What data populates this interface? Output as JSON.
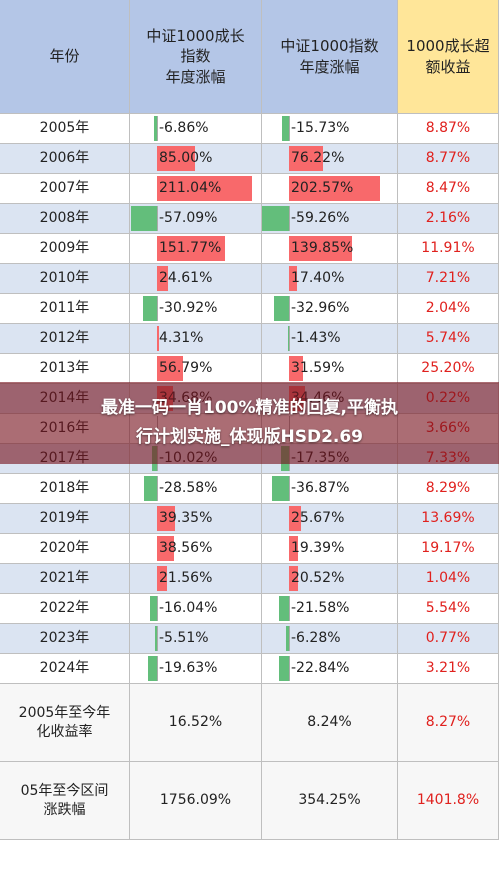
{
  "headers": {
    "year": "年份",
    "csi1000": "中证1000成长\n指数\n年度涨幅",
    "csi1000_index": "中证1000指数\n年度涨幅",
    "excess": "1000成长超\n额收益"
  },
  "rows": [
    {
      "year": "2005年",
      "a": "-6.86%",
      "a_num": -6.86,
      "b": "-15.73%",
      "b_num": -15.73,
      "c": "8.87%"
    },
    {
      "year": "2006年",
      "a": "85.00%",
      "a_num": 85.0,
      "b": "76.22%",
      "b_num": 76.22,
      "c": "8.77%"
    },
    {
      "year": "2007年",
      "a": "211.04%",
      "a_num": 211.04,
      "b": "202.57%",
      "b_num": 202.57,
      "c": "8.47%"
    },
    {
      "year": "2008年",
      "a": "-57.09%",
      "a_num": -57.09,
      "b": "-59.26%",
      "b_num": -59.26,
      "c": "2.16%"
    },
    {
      "year": "2009年",
      "a": "151.77%",
      "a_num": 151.77,
      "b": "139.85%",
      "b_num": 139.85,
      "c": "11.91%"
    },
    {
      "year": "2010年",
      "a": "24.61%",
      "a_num": 24.61,
      "b": "17.40%",
      "b_num": 17.4,
      "c": "7.21%"
    },
    {
      "year": "2011年",
      "a": "-30.92%",
      "a_num": -30.92,
      "b": "-32.96%",
      "b_num": -32.96,
      "c": "2.04%"
    },
    {
      "year": "2012年",
      "a": "4.31%",
      "a_num": 4.31,
      "b": "-1.43%",
      "b_num": -1.43,
      "c": "5.74%"
    },
    {
      "year": "2013年",
      "a": "56.79%",
      "a_num": 56.79,
      "b": "31.59%",
      "b_num": 31.59,
      "c": "25.20%"
    },
    {
      "year": "2014年",
      "a": "34.68%",
      "a_num": 34.68,
      "b": "34.46%",
      "b_num": 34.46,
      "c": "0.22%"
    },
    {
      "year": "2016年",
      "a": "",
      "a_num": null,
      "b": "",
      "b_num": null,
      "c": "3.66%"
    },
    {
      "year": "2017年",
      "a": "-10.02%",
      "a_num": -10.02,
      "b": "-17.35%",
      "b_num": -17.35,
      "c": "7.33%"
    },
    {
      "year": "2018年",
      "a": "-28.58%",
      "a_num": -28.58,
      "b": "-36.87%",
      "b_num": -36.87,
      "c": "8.29%"
    },
    {
      "year": "2019年",
      "a": "39.35%",
      "a_num": 39.35,
      "b": "25.67%",
      "b_num": 25.67,
      "c": "13.69%"
    },
    {
      "year": "2020年",
      "a": "38.56%",
      "a_num": 38.56,
      "b": "19.39%",
      "b_num": 19.39,
      "c": "19.17%"
    },
    {
      "year": "2021年",
      "a": "21.56%",
      "a_num": 21.56,
      "b": "20.52%",
      "b_num": 20.52,
      "c": "1.04%"
    },
    {
      "year": "2022年",
      "a": "-16.04%",
      "a_num": -16.04,
      "b": "-21.58%",
      "b_num": -21.58,
      "c": "5.54%"
    },
    {
      "year": "2023年",
      "a": "-5.51%",
      "a_num": -5.51,
      "b": "-6.28%",
      "b_num": -6.28,
      "c": "0.77%"
    },
    {
      "year": "2024年",
      "a": "-19.63%",
      "a_num": -19.63,
      "b": "-22.84%",
      "b_num": -22.84,
      "c": "3.21%"
    }
  ],
  "summary": [
    {
      "label": "2005年至今年\n化收益率",
      "a": "16.52%",
      "b": "8.24%",
      "c": "8.27%"
    },
    {
      "label": "05年至今区间\n涨跌幅",
      "a": "1756.09%",
      "b": "354.25%",
      "c": "1401.8%"
    }
  ],
  "banner": {
    "line1": "最准一码一肖100%精准的回复,平衡执",
    "line2": "行计划实施_体现版HSD2.69"
  },
  "colors": {
    "header_blue": "#b4c6e7",
    "header_gold": "#ffe699",
    "row_blue": "#dbe4f2",
    "positive_bar": "#f8696b",
    "negative_bar": "#63be7b",
    "excess_text": "#e0211e"
  }
}
